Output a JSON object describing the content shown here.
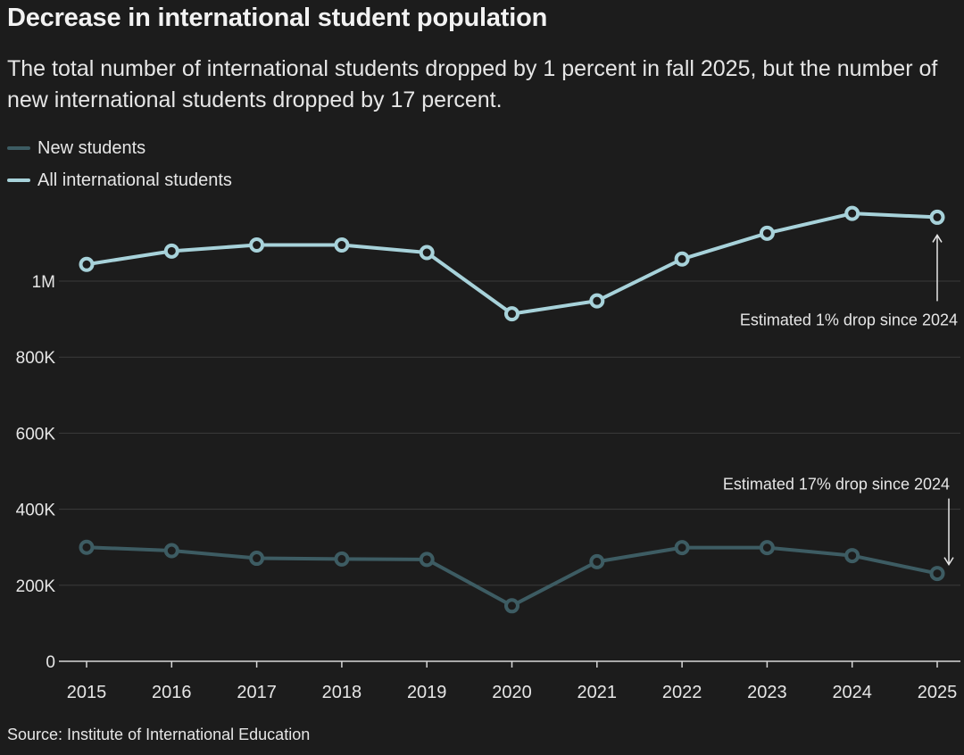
{
  "title": "Decrease in international student population",
  "subtitle": "The total number of international students dropped by 1 percent in fall 2025, but the number of new international students dropped by 17 percent.",
  "source": "Source: Institute of International Education",
  "colors": {
    "background": "#1c1c1c",
    "new_students": "#3d5c63",
    "all_students": "#a7d2da",
    "grid": "#3a3a3a",
    "text": "#e6e6e6"
  },
  "chart_data": {
    "type": "line",
    "title": "Decrease in international student population",
    "xlabel": "",
    "ylabel": "",
    "x": [
      "2015",
      "2016",
      "2017",
      "2018",
      "2019",
      "2020",
      "2021",
      "2022",
      "2023",
      "2024",
      "2025"
    ],
    "ylim": [
      0,
      1200000
    ],
    "yticks": [
      0,
      200000,
      400000,
      600000,
      800000,
      1000000
    ],
    "ytick_labels": [
      "0",
      "200K",
      "400K",
      "600K",
      "800K",
      "1M"
    ],
    "legend": "top-left",
    "series": [
      {
        "name": "New students",
        "color": "#3d5c63",
        "values": [
          300000,
          291000,
          271000,
          269000,
          268000,
          146000,
          262000,
          299000,
          299000,
          278000,
          231000
        ]
      },
      {
        "name": "All international students",
        "color": "#a7d2da",
        "values": [
          1044000,
          1079000,
          1095000,
          1095000,
          1075000,
          914000,
          948000,
          1058000,
          1126000,
          1178000,
          1168000
        ]
      }
    ],
    "annotations": [
      {
        "series": 1,
        "index": 10,
        "text": "Estimated 1% drop since 2024",
        "position": "below"
      },
      {
        "series": 0,
        "index": 10,
        "text": "Estimated 17% drop since 2024",
        "position": "above"
      }
    ]
  }
}
